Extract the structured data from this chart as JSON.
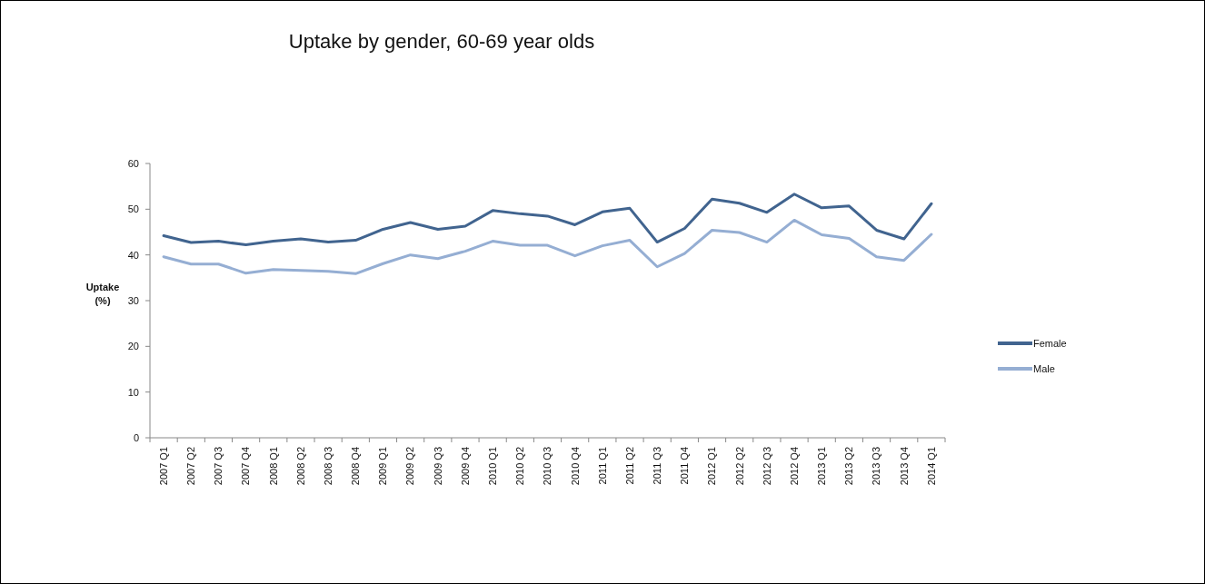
{
  "chart_data": {
    "type": "line",
    "title": "Uptake by gender, 60-69 year olds",
    "ylabel": "Uptake\n(%)",
    "categories": [
      "2007 Q1",
      "2007 Q2",
      "2007 Q3",
      "2007 Q4",
      "2008 Q1",
      "2008 Q2",
      "2008 Q3",
      "2008 Q4",
      "2009 Q1",
      "2009 Q2",
      "2009 Q3",
      "2009 Q4",
      "2010 Q1",
      "2010 Q2",
      "2010 Q3",
      "2010 Q4",
      "2011 Q1",
      "2011 Q2",
      "2011 Q3",
      "2011 Q4",
      "2012 Q1",
      "2012 Q2",
      "2012 Q3",
      "2012 Q4",
      "2013 Q1",
      "2013 Q2",
      "2013 Q3",
      "2013 Q4",
      "2014 Q1"
    ],
    "series": [
      {
        "name": "Female",
        "color": "#41648f",
        "values": [
          44.2,
          42.7,
          43,
          42.2,
          43,
          43.5,
          42.8,
          43.2,
          45.6,
          47.1,
          45.6,
          46.3,
          49.7,
          49,
          48.5,
          46.6,
          49.4,
          50.2,
          42.8,
          45.8,
          52.2,
          51.3,
          49.3,
          53.3,
          50.3,
          50.7,
          45.4,
          43.5,
          51.2
        ]
      },
      {
        "name": "Male",
        "color": "#95aed3",
        "values": [
          39.6,
          38,
          38,
          36,
          36.8,
          36.6,
          36.4,
          35.9,
          38.1,
          40,
          39.2,
          40.8,
          43,
          42.1,
          42.1,
          39.8,
          42,
          43.2,
          37.4,
          40.3,
          45.4,
          44.9,
          42.8,
          47.6,
          44.4,
          43.6,
          39.6,
          38.8,
          44.5
        ]
      }
    ],
    "ylim": [
      0,
      60
    ],
    "yticks": [
      0,
      10,
      20,
      30,
      40,
      50,
      60
    ],
    "legend": "right"
  }
}
